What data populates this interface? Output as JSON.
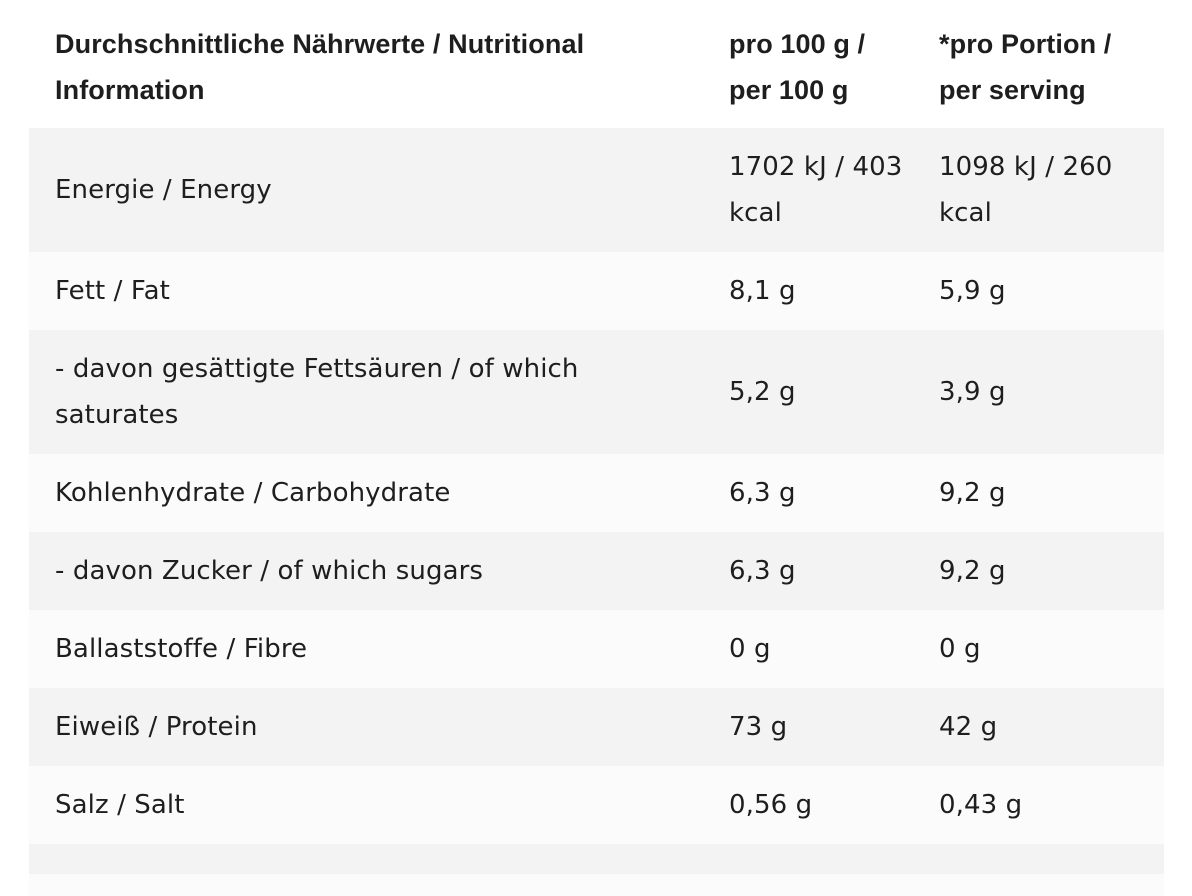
{
  "header": {
    "col1": "Durchschnittliche Nährwerte / Nutritional Information",
    "col2": "pro 100 g / per 100 g",
    "col3": "*pro Portion / per serving"
  },
  "rows": [
    {
      "label": "Energie / Energy",
      "per100": "1702 kJ / 403 kcal",
      "perServing": "1098 kJ / 260 kcal"
    },
    {
      "label": "Fett / Fat",
      "per100": "8,1 g",
      "perServing": "5,9 g"
    },
    {
      "label": "- davon gesättigte Fettsäuren / of which saturates",
      "per100": "5,2 g",
      "perServing": "3,9 g"
    },
    {
      "label": "Kohlenhydrate / Carbohydrate",
      "per100": "6,3 g",
      "perServing": "9,2 g"
    },
    {
      "label": "- davon Zucker / of which sugars",
      "per100": "6,3 g",
      "perServing": "9,2 g"
    },
    {
      "label": "Ballaststoffe / Fibre",
      "per100": "0 g",
      "perServing": "0 g"
    },
    {
      "label": "Eiweiß / Protein",
      "per100": "73 g",
      "perServing": "42 g"
    },
    {
      "label": "Salz / Salt",
      "per100": "0,56 g",
      "perServing": "0,43 g"
    }
  ]
}
